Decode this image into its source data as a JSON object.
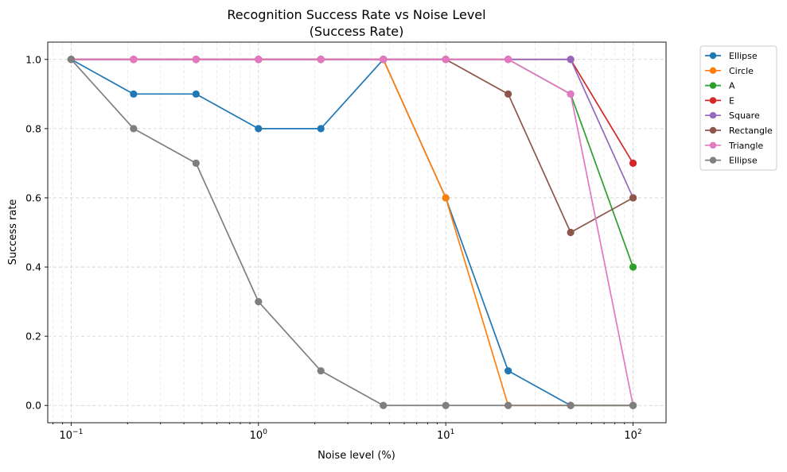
{
  "chart_data": {
    "type": "line",
    "title": "Recognition Success Rate vs Noise Level",
    "subtitle": "(Success Rate)",
    "xlabel": "Noise level (%)",
    "ylabel": "Success rate",
    "xscale": "log",
    "xlim": [
      0.075,
      150
    ],
    "ylim": [
      -0.05,
      1.05
    ],
    "xticks": [
      {
        "value": 0.1,
        "base": "10",
        "exp": "−1"
      },
      {
        "value": 1,
        "base": "10",
        "exp": "0"
      },
      {
        "value": 10,
        "base": "10",
        "exp": "1"
      },
      {
        "value": 100,
        "base": "10",
        "exp": "2"
      }
    ],
    "yticks": [
      0.0,
      0.2,
      0.4,
      0.6,
      0.8,
      1.0
    ],
    "ytick_labels": [
      "0.0",
      "0.2",
      "0.4",
      "0.6",
      "0.8",
      "1.0"
    ],
    "grid": true,
    "legend_position": "outside right, top",
    "x": [
      0.1,
      0.2154,
      0.4642,
      1.0,
      2.154,
      4.642,
      10.0,
      21.54,
      46.42,
      100.0
    ],
    "series": [
      {
        "name": "Ellipse",
        "color": "#1f77b4",
        "values": [
          1.0,
          0.9,
          0.9,
          0.8,
          0.8,
          1.0,
          0.6,
          0.1,
          0.0,
          0.0
        ]
      },
      {
        "name": "Circle",
        "color": "#ff7f0e",
        "values": [
          1.0,
          1.0,
          1.0,
          1.0,
          1.0,
          1.0,
          0.6,
          0.0,
          0.0,
          0.0
        ]
      },
      {
        "name": "A",
        "color": "#2ca02c",
        "values": [
          1.0,
          1.0,
          1.0,
          1.0,
          1.0,
          1.0,
          1.0,
          1.0,
          0.9,
          0.4
        ]
      },
      {
        "name": "E",
        "color": "#d62728",
        "values": [
          1.0,
          1.0,
          1.0,
          1.0,
          1.0,
          1.0,
          1.0,
          1.0,
          1.0,
          0.7
        ]
      },
      {
        "name": "Square",
        "color": "#9467bd",
        "values": [
          1.0,
          1.0,
          1.0,
          1.0,
          1.0,
          1.0,
          1.0,
          1.0,
          1.0,
          0.6
        ]
      },
      {
        "name": "Rectangle",
        "color": "#8c564b",
        "values": [
          1.0,
          1.0,
          1.0,
          1.0,
          1.0,
          1.0,
          1.0,
          0.9,
          0.5,
          0.6
        ]
      },
      {
        "name": "Triangle",
        "color": "#e377c2",
        "values": [
          1.0,
          1.0,
          1.0,
          1.0,
          1.0,
          1.0,
          1.0,
          1.0,
          0.9,
          0.0
        ]
      },
      {
        "name": "Ellipse",
        "color": "#7f7f7f",
        "values": [
          1.0,
          0.8,
          0.7,
          0.3,
          0.1,
          0.0,
          0.0,
          0.0,
          0.0,
          0.0
        ]
      }
    ]
  }
}
